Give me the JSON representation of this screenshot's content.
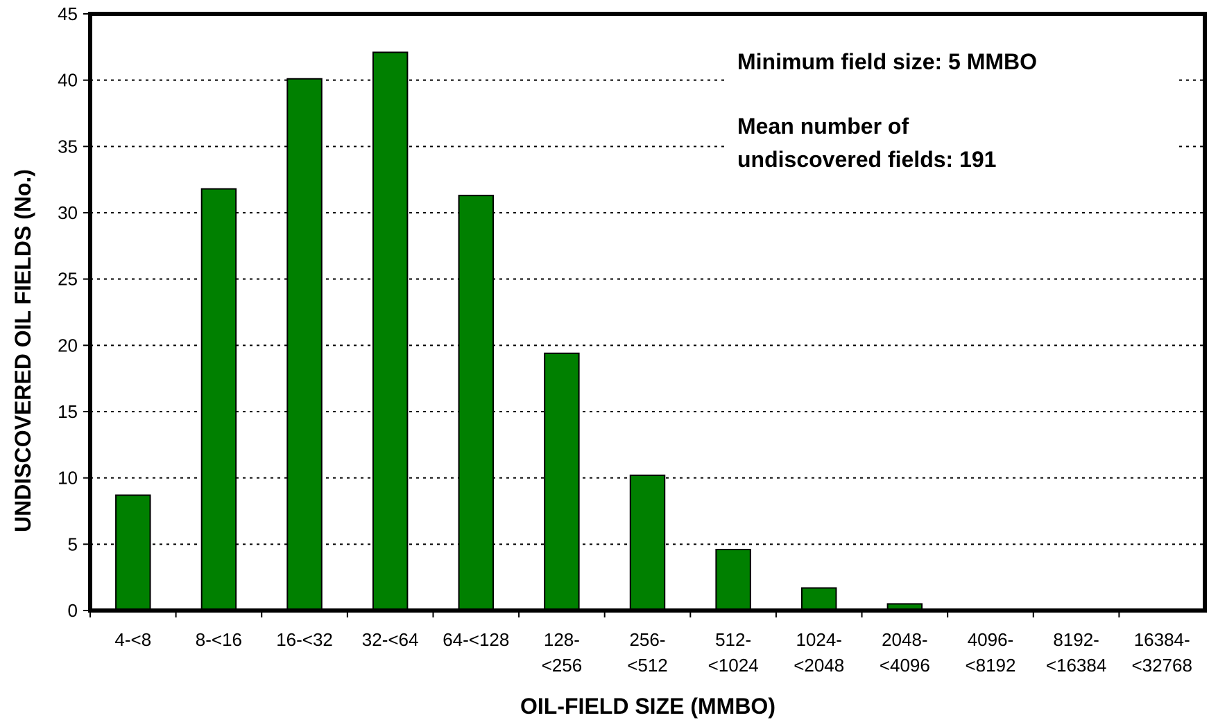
{
  "chart_data": {
    "type": "bar",
    "xlabel": "OIL-FIELD SIZE (MMBO)",
    "ylabel": "UNDISCOVERED OIL FIELDS (No.)",
    "ylim": [
      0,
      45
    ],
    "yticks": [
      0,
      5,
      10,
      15,
      20,
      25,
      30,
      35,
      40,
      45
    ],
    "grid": "horizontal dotted",
    "bar_color": "#008000",
    "categories": [
      [
        "4-<8"
      ],
      [
        "8-<16"
      ],
      [
        "16-<32"
      ],
      [
        "32-<64"
      ],
      [
        "64-<128"
      ],
      [
        "128-",
        "<256"
      ],
      [
        "256-",
        "<512"
      ],
      [
        "512-",
        "<1024"
      ],
      [
        "1024-",
        "<2048"
      ],
      [
        "2048-",
        "<4096"
      ],
      [
        "4096-",
        "<8192"
      ],
      [
        "8192-",
        "<16384"
      ],
      [
        "16384-",
        "<32768"
      ]
    ],
    "values": [
      8.7,
      31.8,
      40.1,
      42.1,
      31.3,
      19.4,
      10.2,
      4.6,
      1.7,
      0.5,
      0.05,
      0,
      0
    ],
    "annotations": [
      "Minimum field size: 5 MMBO",
      "Mean number of",
      "undiscovered fields: 191"
    ]
  }
}
